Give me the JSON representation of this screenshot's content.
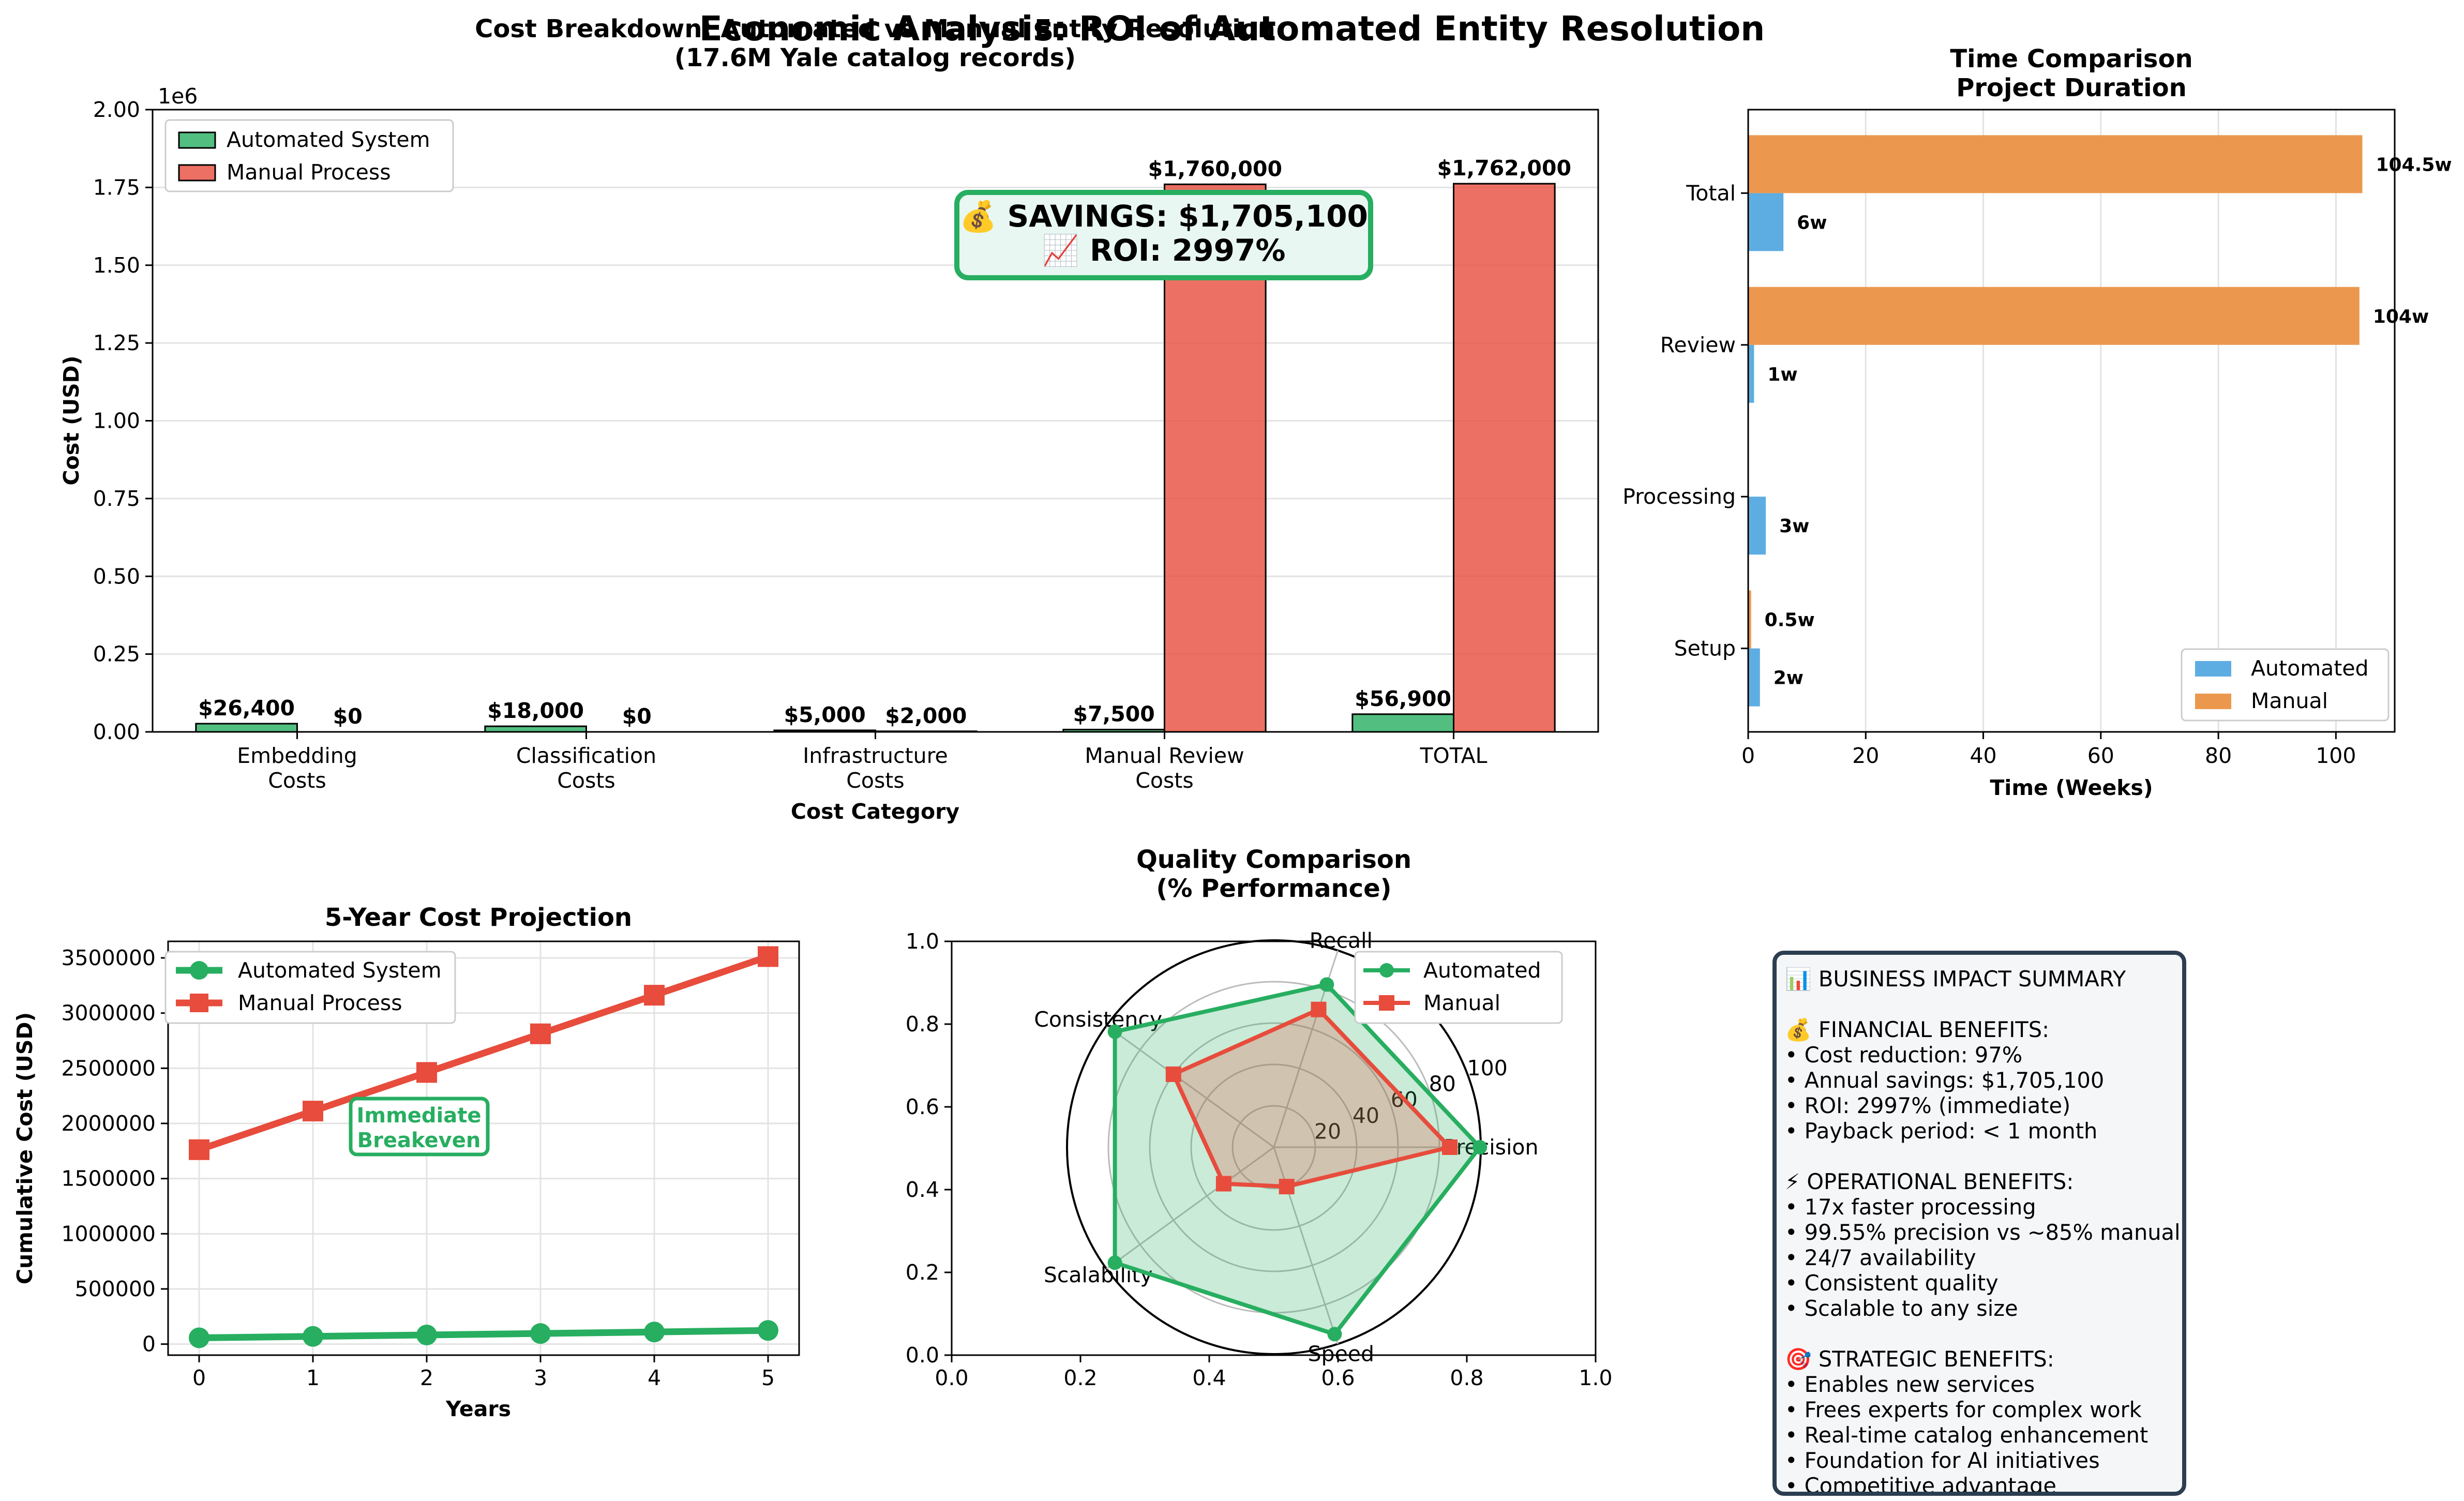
{
  "suptitle": "Economic Analysis: ROI of Automated Entity Resolution",
  "colors": {
    "automated": "#27ae60",
    "manual": "#e74c3c",
    "time_automated": "#5dade2",
    "time_manual": "#eb984e",
    "summary_border": "#2c3e50"
  },
  "chart_data": [
    {
      "id": "cost_breakdown",
      "type": "bar",
      "title": "Cost Breakdown: Automated vs Manual Entity Resolution",
      "subtitle": "(17.6M Yale catalog records)",
      "xlabel": "Cost Category",
      "ylabel": "Cost (USD)",
      "y_offset_label": "1e6",
      "ylim": [
        0,
        2000000
      ],
      "yticks": [
        "0.00",
        "0.25",
        "0.50",
        "0.75",
        "1.00",
        "1.25",
        "1.50",
        "1.75",
        "2.00"
      ],
      "categories": [
        "Embedding\nCosts",
        "Classification\nCosts",
        "Infrastructure\nCosts",
        "Manual Review\nCosts",
        "TOTAL"
      ],
      "series": [
        {
          "name": "Automated System",
          "values": [
            26400,
            18000,
            5000,
            7500,
            56900
          ],
          "labels": [
            "$26,400",
            "$18,000",
            "$5,000",
            "$7,500",
            "$56,900"
          ]
        },
        {
          "name": "Manual Process",
          "values": [
            0,
            0,
            2000,
            1760000,
            1762000
          ],
          "labels": [
            "$0",
            "$0",
            "$2,000",
            "$1,760,000",
            "$1,762,000"
          ]
        }
      ],
      "legend_position": "upper-left",
      "grid": "y",
      "annotation": {
        "line1": "💰 SAVINGS: $1,705,100",
        "line2": "📈 ROI: 2997%"
      }
    },
    {
      "id": "time_comparison",
      "type": "bar",
      "orientation": "horizontal",
      "title": "Time Comparison",
      "subtitle": "Project Duration",
      "xlabel": "Time (Weeks)",
      "xlim": [
        0,
        110
      ],
      "xticks": [
        0,
        20,
        40,
        60,
        80,
        100
      ],
      "categories": [
        "Setup",
        "Processing",
        "Review",
        "Total"
      ],
      "series": [
        {
          "name": "Automated",
          "values": [
            2,
            3,
            1,
            6
          ],
          "labels": [
            "2w",
            "3w",
            "1w",
            "6w"
          ]
        },
        {
          "name": "Manual",
          "values": [
            0.5,
            0,
            104,
            104.5
          ],
          "labels": [
            "0.5w",
            "",
            "104w",
            "104.5w"
          ]
        }
      ],
      "legend_position": "lower-right",
      "grid": "x"
    },
    {
      "id": "five_year",
      "type": "line",
      "title": "5-Year Cost Projection",
      "xlabel": "Years",
      "ylabel": "Cumulative Cost (USD)",
      "x": [
        0,
        1,
        2,
        3,
        4,
        5
      ],
      "ylim": [
        -100000,
        3650000
      ],
      "yticks": [
        0,
        500000,
        1000000,
        1500000,
        2000000,
        2500000,
        3000000,
        3500000
      ],
      "series": [
        {
          "name": "Automated System",
          "values": [
            56900,
            70000,
            83000,
            96000,
            110000,
            124000
          ]
        },
        {
          "name": "Manual Process",
          "values": [
            1762000,
            2112000,
            2462000,
            2812000,
            3162000,
            3512000
          ]
        }
      ],
      "legend_position": "upper-left",
      "grid": true,
      "annotation": {
        "line1": "Immediate",
        "line2": "Breakeven"
      }
    },
    {
      "id": "quality",
      "type": "radar",
      "title": "Quality Comparison",
      "subtitle": "(% Performance)",
      "axes": [
        "Precision",
        "Recall",
        "Consistency",
        "Scalability",
        "Speed"
      ],
      "r_max": 100,
      "r_ticks": [
        "20",
        "40",
        "60",
        "80",
        "100"
      ],
      "frame_ticks": [
        "0.0",
        "0.2",
        "0.4",
        "0.6",
        "0.8",
        "1.0"
      ],
      "series": [
        {
          "name": "Automated",
          "values": [
            99.55,
            82.7,
            95,
            95,
            95
          ]
        },
        {
          "name": "Manual",
          "values": [
            85,
            70,
            60,
            30,
            20
          ]
        }
      ],
      "legend_position": "upper-right"
    }
  ],
  "summary": {
    "lines": [
      "📊 BUSINESS IMPACT SUMMARY",
      "",
      "💰 FINANCIAL BENEFITS:",
      "• Cost reduction: 97%",
      "• Annual savings: $1,705,100",
      "• ROI: 2997% (immediate)",
      "• Payback period: < 1 month",
      "",
      "⚡ OPERATIONAL BENEFITS:",
      "• 17x faster processing",
      "• 99.55% precision vs ~85% manual",
      "• 24/7 availability",
      "• Consistent quality",
      "• Scalable to any size",
      "",
      "🎯 STRATEGIC BENEFITS:",
      "• Enables new services",
      "• Frees experts for complex work",
      "• Real-time catalog enhancement",
      "• Foundation for AI initiatives",
      "• Competitive advantage"
    ]
  }
}
